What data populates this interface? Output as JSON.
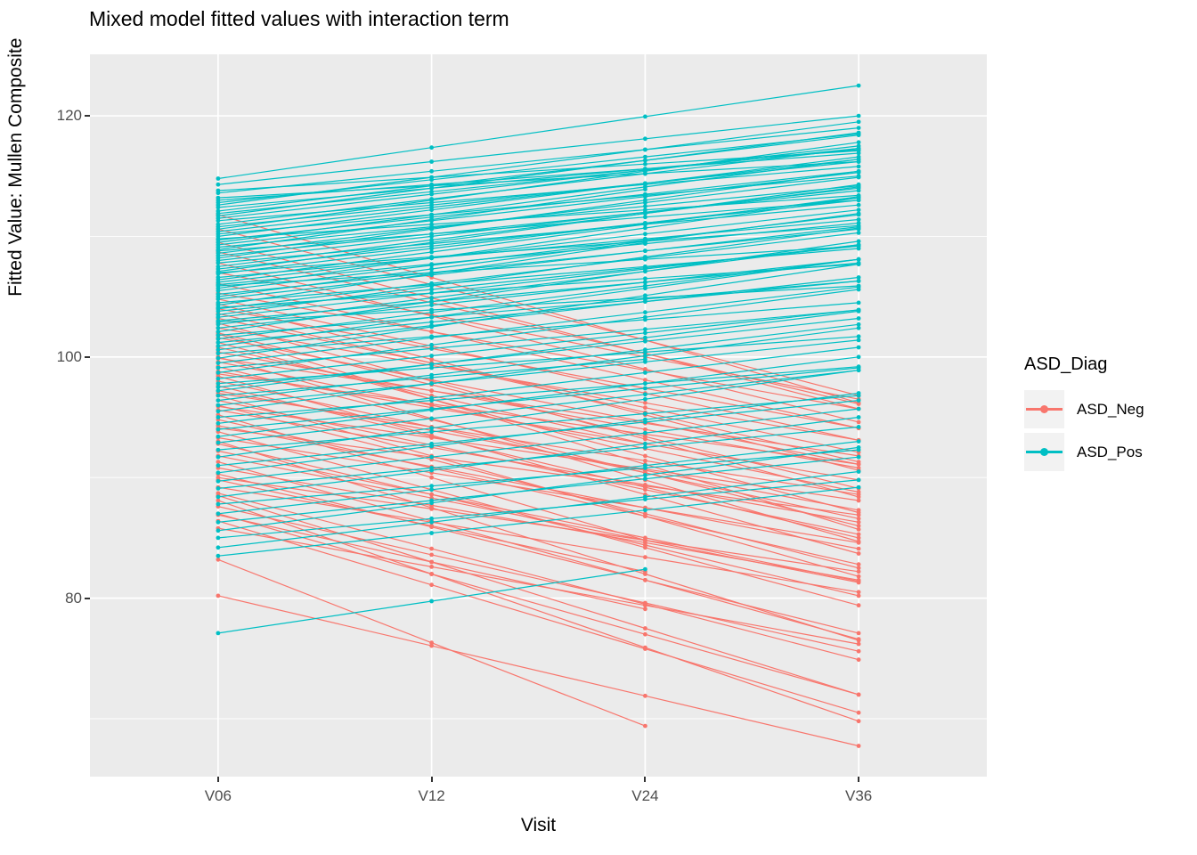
{
  "title": "Mixed model fitted values with interaction term",
  "axes": {
    "x": {
      "label": "Visit",
      "categories": [
        "V06",
        "V12",
        "V24",
        "V36"
      ]
    },
    "y": {
      "label": "Fitted Value: Mullen Composite",
      "major_ticks": [
        80,
        100,
        120
      ],
      "minor_gridlines": [
        70,
        90,
        110
      ],
      "range": [
        65.2,
        125.1
      ]
    }
  },
  "legend": {
    "title": "ASD_Diag",
    "entries": [
      {
        "label": "ASD_Neg",
        "color": "#F8766D"
      },
      {
        "label": "ASD_Pos",
        "color": "#00BFC4"
      }
    ]
  },
  "colors": {
    "asd_neg": "#F8766D",
    "asd_pos": "#00BFC4",
    "panel_background": "#ebebeb",
    "gridline": "#ffffff",
    "axis_text": "#4d4d4d",
    "legend_key_background": "#f2f2f2"
  },
  "chart_data": {
    "type": "line",
    "title": "Mixed model fitted values with interaction term",
    "xlabel": "Visit",
    "ylabel": "Fitted Value: Mullen Composite",
    "x_categories": [
      "V06",
      "V12",
      "V24",
      "V36"
    ],
    "ylim": [
      65.2,
      125.1
    ],
    "grid": "major-white-on-grey-with-minor",
    "legend_position": "right",
    "subject_format": "[fitted_value_at_V06, slope_per_visit_step, n_visits(optional, default 4)]",
    "series": [
      {
        "name": "ASD_Neg",
        "color": "#F8766D",
        "trend": "decreasing",
        "subjects": [
          [
            80.2,
            -4.15
          ],
          [
            83.2,
            -6.9,
            3
          ],
          [
            85.8,
            -3.2
          ],
          [
            86.4,
            -5.3
          ],
          [
            86.9,
            -3.9,
            3
          ],
          [
            87.0,
            -5.0
          ],
          [
            87.6,
            -4.0
          ],
          [
            88.1,
            -6.1
          ],
          [
            88.5,
            -5.5
          ],
          [
            88.7,
            -4.6
          ],
          [
            89.2,
            -2.9
          ],
          [
            89.8,
            -3.8,
            3
          ],
          [
            90.0,
            -2.6
          ],
          [
            90.3,
            -4.4
          ],
          [
            90.8,
            -3.1
          ],
          [
            91.3,
            -4.9
          ],
          [
            91.8,
            -3.5
          ],
          [
            92.2,
            -3.6
          ],
          [
            92.8,
            -4.2
          ],
          [
            93.0,
            -5.5
          ],
          [
            93.3,
            -2.9
          ],
          [
            93.8,
            -4.8
          ],
          [
            94.1,
            -2.4
          ],
          [
            94.3,
            -3.4
          ],
          [
            94.8,
            -4.0
          ],
          [
            95.2,
            -5.2,
            3
          ],
          [
            95.6,
            -3.1
          ],
          [
            95.9,
            -2.6
          ],
          [
            96.0,
            -4.5
          ],
          [
            96.4,
            -3.7
          ],
          [
            96.8,
            -5.0
          ],
          [
            97.0,
            -2.8
          ],
          [
            97.2,
            -3.3
          ],
          [
            97.6,
            -4.2
          ],
          [
            98.0,
            -3.8
          ],
          [
            98.4,
            -4.9
          ],
          [
            98.6,
            -2.5
          ],
          [
            98.8,
            -3.0
          ],
          [
            99.2,
            -4.4
          ],
          [
            99.6,
            -3.6
          ],
          [
            99.9,
            -2.7
          ],
          [
            100.0,
            -5.1
          ],
          [
            100.4,
            -3.2
          ],
          [
            100.8,
            -4.0,
            3
          ],
          [
            101.2,
            -4.7
          ],
          [
            101.6,
            -3.5
          ],
          [
            101.9,
            -5.4
          ],
          [
            102.0,
            -4.3
          ],
          [
            102.4,
            -3.1
          ],
          [
            102.8,
            -4.8
          ],
          [
            103.2,
            -3.7
          ],
          [
            103.6,
            -4.1
          ],
          [
            104.0,
            -3.3
          ],
          [
            104.4,
            -4.6
          ],
          [
            104.8,
            -3.9
          ],
          [
            105.3,
            -3.2
          ],
          [
            106.1,
            -4.0
          ],
          [
            107.0,
            -3.5
          ],
          [
            107.8,
            -4.4
          ],
          [
            108.7,
            -4.2
          ],
          [
            109.5,
            -4.6
          ],
          [
            110.6,
            -4.6
          ],
          [
            111.8,
            -5.2
          ]
        ]
      },
      {
        "name": "ASD_Pos",
        "color": "#00BFC4",
        "trend": "increasing",
        "subjects": [
          [
            77.1,
            2.65,
            3
          ],
          [
            83.5,
            1.9
          ],
          [
            84.2,
            2.1
          ],
          [
            85.0,
            1.6
          ],
          [
            85.6,
            2.3
          ],
          [
            86.3,
            1.8
          ],
          [
            87.0,
            2.0
          ],
          [
            87.8,
            1.5
          ],
          [
            88.4,
            2.2
          ],
          [
            89.1,
            1.7
          ],
          [
            89.7,
            2.0
          ],
          [
            90.4,
            2.2
          ],
          [
            91.0,
            1.8
          ],
          [
            91.7,
            2.4
          ],
          [
            92.3,
            1.5
          ],
          [
            92.9,
            2.0
          ],
          [
            93.4,
            2.2
          ],
          [
            94.0,
            1.7
          ],
          [
            94.5,
            2.1
          ],
          [
            95.0,
            1.4
          ],
          [
            95.5,
            2.3
          ],
          [
            96.0,
            1.8
          ],
          [
            96.4,
            2.1
          ],
          [
            96.8,
            1.5,
            3
          ],
          [
            97.2,
            2.2
          ],
          [
            97.5,
            1.9
          ],
          [
            97.8,
            1.3
          ],
          [
            98.2,
            1.9
          ],
          [
            98.7,
            2.3
          ],
          [
            99.1,
            1.6
          ],
          [
            99.5,
            2.1
          ],
          [
            99.9,
            2.6
          ],
          [
            100.3,
            1.4
          ],
          [
            100.6,
            2.0
          ],
          [
            100.9,
            2.4
          ],
          [
            101.2,
            1.7
          ],
          [
            101.5,
            2.2
          ],
          [
            101.8,
            1.5
          ],
          [
            102.1,
            2.5
          ],
          [
            102.4,
            1.9
          ],
          [
            102.7,
            2.2
          ],
          [
            102.9,
            1.0
          ],
          [
            103.0,
            1.6
          ],
          [
            103.3,
            2.0
          ],
          [
            103.5,
            2.4
          ],
          [
            103.8,
            1.8
          ],
          [
            104.0,
            2.1
          ],
          [
            104.1,
            1.2
          ],
          [
            104.3,
            2.6,
            3
          ],
          [
            104.5,
            1.5
          ],
          [
            104.8,
            2.0
          ],
          [
            105.0,
            2.3
          ],
          [
            105.2,
            1.8
          ],
          [
            105.5,
            2.1
          ],
          [
            105.7,
            2.5
          ],
          [
            105.9,
            1.1
          ],
          [
            106.0,
            1.7
          ],
          [
            106.2,
            2.0
          ],
          [
            106.4,
            2.3
          ],
          [
            106.6,
            1.6
          ],
          [
            106.9,
            2.1
          ],
          [
            107.0,
            1.3
          ],
          [
            107.1,
            2.4
          ],
          [
            107.3,
            1.9
          ],
          [
            107.5,
            2.2
          ],
          [
            107.8,
            1.6
          ],
          [
            108.0,
            2.0
          ],
          [
            108.2,
            2.4
          ],
          [
            108.4,
            1.8
          ],
          [
            108.6,
            2.1
          ],
          [
            108.8,
            1.4
          ],
          [
            108.9,
            2.5,
            3
          ],
          [
            109.1,
            1.7
          ],
          [
            109.3,
            2.0
          ],
          [
            109.5,
            2.3
          ],
          [
            109.7,
            1.9
          ],
          [
            109.8,
            1.2
          ],
          [
            110.0,
            2.2
          ],
          [
            110.2,
            1.6
          ],
          [
            110.4,
            2.0
          ],
          [
            110.6,
            2.4
          ],
          [
            110.8,
            1.8
          ],
          [
            111.0,
            2.1
          ],
          [
            111.3,
            1.5
          ],
          [
            111.5,
            2.0
          ],
          [
            111.7,
            2.3
          ],
          [
            111.9,
            1.8
          ],
          [
            112.1,
            2.1
          ],
          [
            112.4,
            1.6
          ],
          [
            112.6,
            2.3
          ],
          [
            112.8,
            1.9
          ],
          [
            113.0,
            1.3
          ],
          [
            113.2,
            1.0
          ],
          [
            113.6,
            1.8
          ],
          [
            113.8,
            1.1
          ],
          [
            114.3,
            1.9
          ],
          [
            114.8,
            2.57
          ]
        ]
      }
    ]
  }
}
